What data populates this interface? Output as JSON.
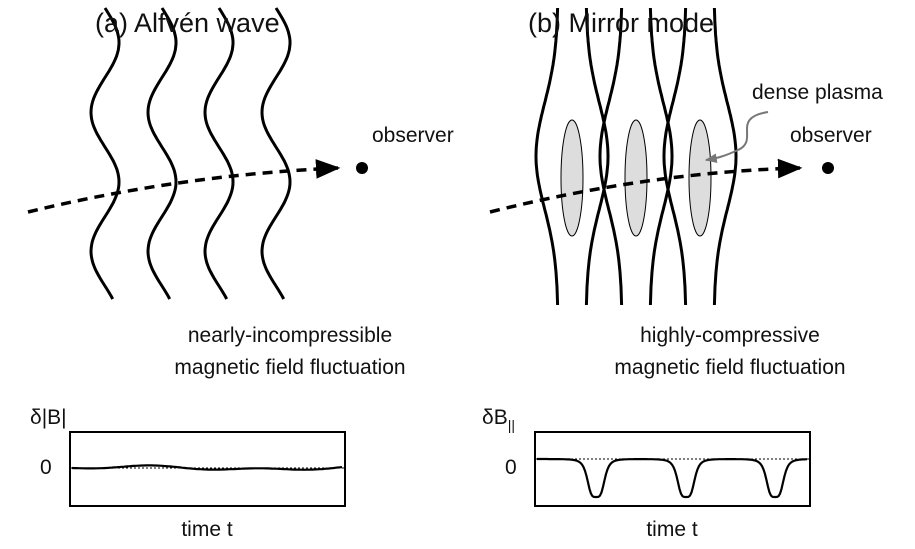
{
  "panels": [
    {
      "title": "(a) Alfvén wave",
      "observer": "observer",
      "description": [
        "nearly-incompressible",
        "magnetic field fluctuation"
      ],
      "plot": {
        "y_label": "δ|B|",
        "zero_label": "0",
        "x_label": "time t"
      }
    },
    {
      "title": "(b) Mirror mode",
      "annotation": "dense plasma",
      "observer": "observer",
      "description": [
        "highly-compressive",
        "magnetic field fluctuation"
      ],
      "plot": {
        "y_label": "δB",
        "y_label_subscript": "||",
        "zero_label": "0",
        "x_label": "time t"
      }
    }
  ]
}
